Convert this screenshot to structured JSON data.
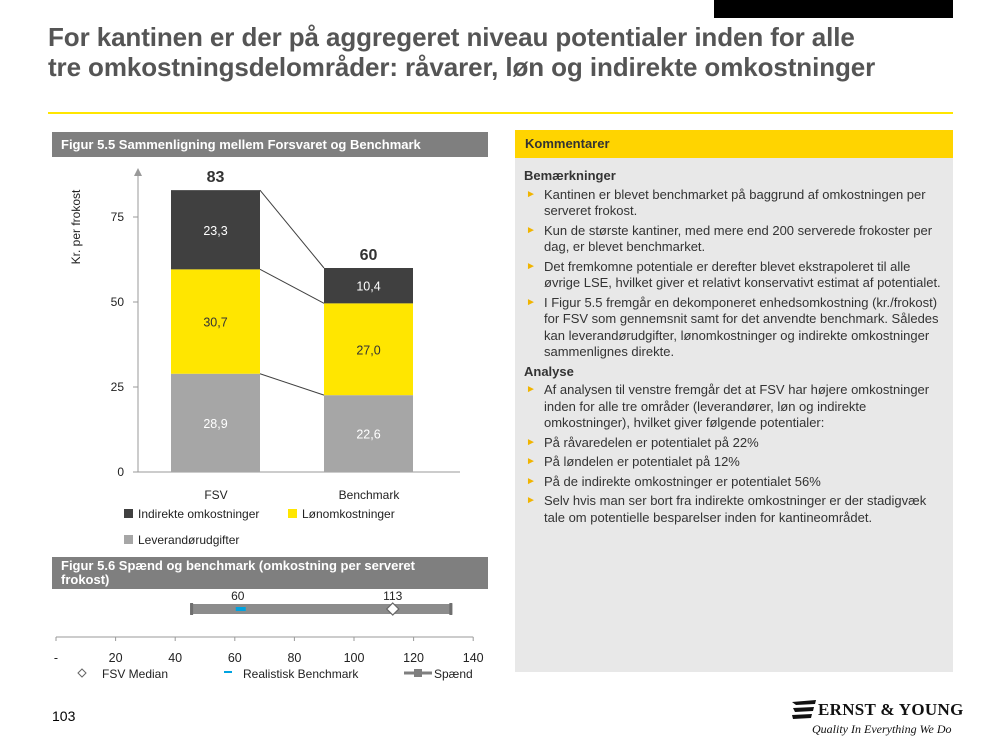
{
  "slide": {
    "title_line1": "For kantinen er der på aggregeret niveau potentialer inden for alle",
    "title_line2": "tre omkostningsdelområder: råvarer, løn og indirekte omkostninger",
    "page_number": "103"
  },
  "figure1": {
    "header": "Figur 5.5 Sammenligning mellem Forsvaret og Benchmark",
    "ylabel": "Kr. per frokost",
    "yticks": [
      "0",
      "25",
      "50",
      "75"
    ],
    "totals": [
      "83",
      "60"
    ],
    "legend": {
      "indirect": "Indirekte omkostninger",
      "wage": "Lønomkostninger",
      "supplier": "Leverandørudgifter"
    }
  },
  "chart_data": [
    {
      "type": "bar",
      "stacked": true,
      "categories": [
        "FSV",
        "Benchmark"
      ],
      "series": [
        {
          "name": "Leverandørudgifter",
          "values": [
            28.9,
            22.6
          ],
          "labels": [
            "28,9",
            "22,6"
          ]
        },
        {
          "name": "Lønomkostninger",
          "values": [
            30.7,
            27.0
          ],
          "labels": [
            "30,7",
            "27,0"
          ]
        },
        {
          "name": "Indirekte omkostninger",
          "values": [
            23.3,
            10.4
          ],
          "labels": [
            "23,3",
            "10,4"
          ]
        }
      ],
      "totals": [
        83,
        60
      ],
      "ylabel": "Kr. per frokost",
      "ylim": [
        0,
        90
      ],
      "colors": [
        "#a6a6a6",
        "#ffe600",
        "#404040"
      ]
    },
    {
      "type": "range",
      "title": "Figur 5.6 Spænd og benchmark (omkostning per serveret frokost)",
      "xticks": [
        "-",
        "20",
        "40",
        "60",
        "80",
        "100",
        "120",
        "140"
      ],
      "xlim": [
        0,
        140
      ],
      "range": [
        45,
        133
      ],
      "fsv_median": 113,
      "benchmark": 60,
      "benchmark_marker": 62,
      "labels": {
        "benchmark": "60",
        "median": "113"
      },
      "legend": [
        "FSV Median",
        "Realistisk Benchmark",
        "Spænd"
      ]
    }
  ],
  "figure2": {
    "header_line1": "Figur 5.6 Spænd og benchmark (omkostning per serveret",
    "header_line2": "frokost)",
    "xticks": [
      "-",
      "20",
      "40",
      "60",
      "80",
      "100",
      "120",
      "140"
    ],
    "label_benchmark": "60",
    "label_median": "113",
    "legend": {
      "median": "FSV Median",
      "benchmark": "Realistisk Benchmark",
      "span": "Spænd"
    }
  },
  "comments": {
    "header": "Kommentarer",
    "section1_title": "Bemærkninger",
    "section1_items": [
      "Kantinen er blevet benchmarket på baggrund af omkostningen per serveret frokost.",
      "Kun de største kantiner, med mere end 200 serverede frokoster per dag, er blevet benchmarket.",
      "Det fremkomne potentiale er derefter blevet ekstrapoleret til alle øvrige LSE, hvilket giver et relativt konservativt estimat af potentialet.",
      "I Figur 5.5 fremgår en dekomponeret enhedsomkostning (kr./frokost) for FSV som gennemsnit samt for det anvendte benchmark. Således kan leverandørudgifter, lønomkostninger og indirekte omkostninger sammenlignes direkte."
    ],
    "section2_title": "Analyse",
    "section2_items": [
      "Af analysen til venstre fremgår det at FSV har højere omkostninger inden for alle tre områder (leverandører, løn og indirekte omkostninger), hvilket giver følgende potentialer:",
      "På råvaredelen er potentialet på 22%",
      "På løndelen er potentialet på 12%",
      "På de indirekte omkostninger er potentialet 56%",
      "Selv hvis man ser bort fra indirekte omkostninger er der stadigvæk tale om potentielle besparelser inden for kantineområdet."
    ]
  },
  "logo": {
    "name": "ERNST & YOUNG",
    "tagline": "Quality In Everything We Do"
  }
}
